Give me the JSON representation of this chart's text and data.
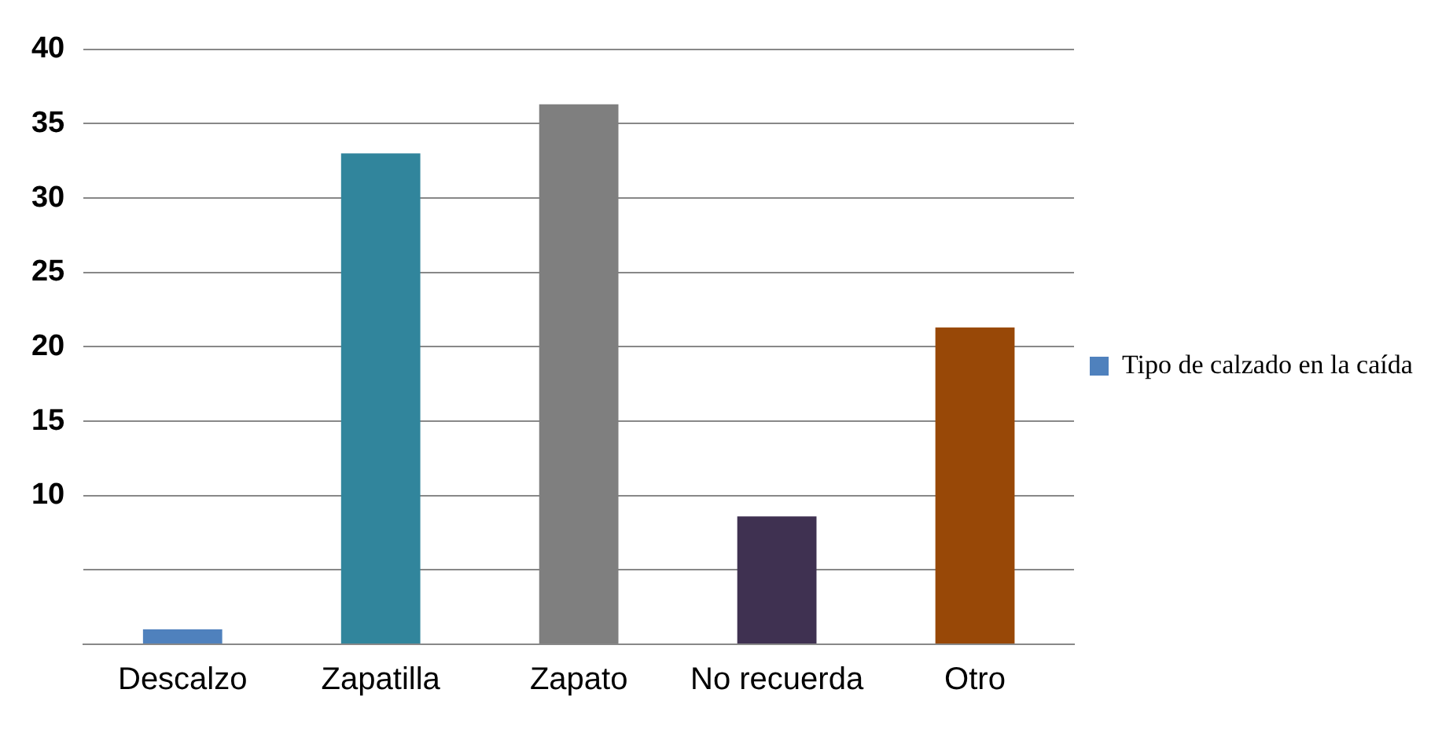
{
  "chart_data": {
    "type": "bar",
    "categories": [
      "Descalzo",
      "Zapatilla",
      "Zapato",
      "No recuerda",
      "Otro"
    ],
    "series": [
      {
        "name": "Tipo de calzado en la caída",
        "colors": [
          "#4f81bd",
          "#31859c",
          "#7f7f7f",
          "#3f3151",
          "#984807"
        ],
        "values": [
          1,
          33,
          36.3,
          8.6,
          21.3
        ]
      }
    ],
    "ylim": [
      0,
      40
    ],
    "yticks": [
      {
        "value": 0,
        "label": null
      },
      {
        "value": 5,
        "label": null
      },
      10,
      15,
      20,
      25,
      30,
      35,
      40
    ],
    "grid": "y",
    "legend": "right"
  }
}
